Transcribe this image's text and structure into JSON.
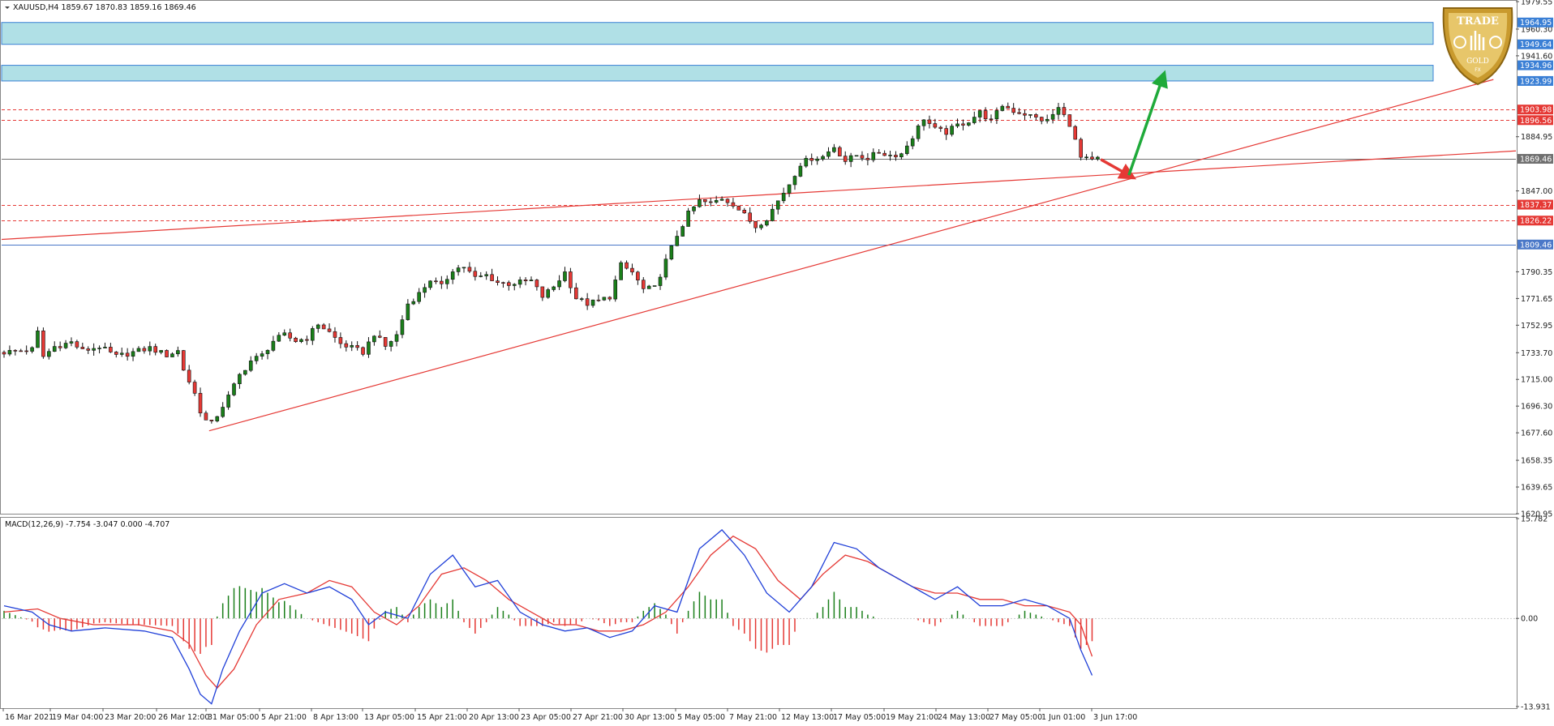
{
  "header": {
    "symbol_line": "XAUUSD,H4  1859.67 1870.83 1859.16 1869.46"
  },
  "macd_header": "MACD(12,26,9) -7.754 -3.047 0.000 -4.707",
  "colors": {
    "bull": "#1a7f1a",
    "bear": "#e53935",
    "zone_fill": "#b0e0e6",
    "zone_border": "#3a7fd5",
    "red_line": "#e53935",
    "blue_line": "#4a78c8",
    "grey_badge": "#707070",
    "green_arrow": "#1faa3a"
  },
  "chart_data": [
    {
      "type": "candlestick",
      "name": "XAUUSD,H4",
      "ylim": [
        1620.95,
        1979.55
      ],
      "price_axis_ticks": [
        "1979.55",
        "1960.30",
        "1941.60",
        "1884.95",
        "1847.00",
        "1790.35",
        "1771.65",
        "1752.95",
        "1733.70",
        "1715.00",
        "1696.30",
        "1677.60",
        "1658.35",
        "1639.65",
        "1620.95"
      ],
      "x_tick_labels": [
        "16 Mar 2021",
        "19 Mar 04:00",
        "23 Mar 20:00",
        "26 Mar 12:00",
        "31 Mar 05:00",
        "5 Apr 21:00",
        "8 Apr 13:00",
        "13 Apr 05:00",
        "15 Apr 21:00",
        "20 Apr 13:00",
        "23 Apr 05:00",
        "27 Apr 21:00",
        "30 Apr 13:00",
        "5 May 05:00",
        "7 May 21:00",
        "12 May 13:00",
        "17 May 05:00",
        "19 May 21:00",
        "24 May 13:00",
        "27 May 05:00",
        "1 Jun 01:00",
        "3 Jun 17:00"
      ],
      "price_path": [
        [
          0,
          1734
        ],
        [
          5,
          1736
        ],
        [
          6,
          1748
        ],
        [
          7,
          1731
        ],
        [
          9,
          1738
        ],
        [
          12,
          1741
        ],
        [
          14,
          1735
        ],
        [
          17,
          1738
        ],
        [
          20,
          1731
        ],
        [
          24,
          1735
        ],
        [
          26,
          1737
        ],
        [
          29,
          1732
        ],
        [
          31,
          1735
        ],
        [
          32,
          1722
        ],
        [
          34,
          1705
        ],
        [
          35,
          1693
        ],
        [
          36,
          1686
        ],
        [
          37,
          1684
        ],
        [
          38,
          1690
        ],
        [
          40,
          1703
        ],
        [
          42,
          1718
        ],
        [
          44,
          1728
        ],
        [
          46,
          1732
        ],
        [
          48,
          1742
        ],
        [
          50,
          1746
        ],
        [
          52,
          1742
        ],
        [
          54,
          1744
        ],
        [
          56,
          1754
        ],
        [
          58,
          1748
        ],
        [
          60,
          1740
        ],
        [
          62,
          1737
        ],
        [
          64,
          1734
        ],
        [
          66,
          1747
        ],
        [
          68,
          1738
        ],
        [
          70,
          1746
        ],
        [
          72,
          1768
        ],
        [
          74,
          1775
        ],
        [
          76,
          1785
        ],
        [
          78,
          1780
        ],
        [
          80,
          1792
        ],
        [
          82,
          1794
        ],
        [
          84,
          1786
        ],
        [
          86,
          1788
        ],
        [
          88,
          1783
        ],
        [
          90,
          1782
        ],
        [
          92,
          1783
        ],
        [
          94,
          1784
        ],
        [
          96,
          1773
        ],
        [
          98,
          1780
        ],
        [
          100,
          1790
        ],
        [
          102,
          1772
        ],
        [
          104,
          1768
        ],
        [
          106,
          1770
        ],
        [
          108,
          1773
        ],
        [
          110,
          1795
        ],
        [
          112,
          1790
        ],
        [
          114,
          1778
        ],
        [
          116,
          1779
        ],
        [
          118,
          1798
        ],
        [
          120,
          1816
        ],
        [
          122,
          1831
        ],
        [
          124,
          1840
        ],
        [
          126,
          1838
        ],
        [
          128,
          1842
        ],
        [
          130,
          1838
        ],
        [
          132,
          1830
        ],
        [
          134,
          1822
        ],
        [
          136,
          1828
        ],
        [
          138,
          1840
        ],
        [
          140,
          1852
        ],
        [
          142,
          1866
        ],
        [
          144,
          1870
        ],
        [
          146,
          1871
        ],
        [
          148,
          1878
        ],
        [
          150,
          1868
        ],
        [
          152,
          1872
        ],
        [
          154,
          1870
        ],
        [
          156,
          1874
        ],
        [
          158,
          1872
        ],
        [
          160,
          1873
        ],
        [
          162,
          1885
        ],
        [
          164,
          1898
        ],
        [
          166,
          1890
        ],
        [
          168,
          1888
        ],
        [
          170,
          1893
        ],
        [
          172,
          1896
        ],
        [
          174,
          1902
        ],
        [
          176,
          1896
        ],
        [
          178,
          1907
        ],
        [
          180,
          1903
        ],
        [
          182,
          1901
        ],
        [
          184,
          1898
        ],
        [
          186,
          1896
        ],
        [
          188,
          1905
        ],
        [
          190,
          1894
        ],
        [
          192,
          1870
        ],
        [
          194,
          1868
        ],
        [
          195,
          1869.46
        ]
      ],
      "horizontal_levels": [
        {
          "label": "1903.98",
          "value": 1903.98,
          "color": "#e53935",
          "style": "dashed"
        },
        {
          "label": "1896.56",
          "value": 1896.56,
          "color": "#e53935",
          "style": "dashed"
        },
        {
          "label": "1869.46",
          "value": 1869.46,
          "color": "#707070",
          "style": "solid"
        },
        {
          "label": "1837.37",
          "value": 1837.37,
          "color": "#e53935",
          "style": "dashed"
        },
        {
          "label": "1826.22",
          "value": 1826.22,
          "color": "#e53935",
          "style": "dashed"
        },
        {
          "label": "1809.46",
          "value": 1809.46,
          "color": "#4a78c8",
          "style": "solid"
        }
      ],
      "zones": [
        {
          "top": 1964.95,
          "bottom": 1949.64,
          "top_label": "1964.95",
          "bottom_label": "1949.64"
        },
        {
          "top": 1934.96,
          "bottom": 1923.99,
          "top_label": "1934.96",
          "bottom_label": "1923.99"
        }
      ],
      "trendlines": [
        {
          "name": "rising-support",
          "from": [
            37,
            1679
          ],
          "to": [
            266,
            1925
          ]
        },
        {
          "name": "shallow-line",
          "from": [
            0,
            1813
          ],
          "to": [
            270,
            1875
          ]
        }
      ],
      "arrows": [
        {
          "name": "red-dip",
          "from": [
            196,
            1869
          ],
          "to": [
            201,
            1858
          ],
          "color": "#e53935"
        },
        {
          "name": "green-rally",
          "from": [
            201,
            1858
          ],
          "to": [
            207,
            1926
          ],
          "color": "#1faa3a"
        }
      ]
    },
    {
      "type": "histogram+line",
      "name": "MACD(12,26,9)",
      "ylim": [
        -13.931,
        15.782
      ],
      "axis_ticks": [
        "15.782",
        "0.00",
        "-13.931"
      ],
      "macd_path": [
        [
          0,
          2
        ],
        [
          5,
          1
        ],
        [
          8,
          -1
        ],
        [
          12,
          -2
        ],
        [
          18,
          -1.5
        ],
        [
          25,
          -2
        ],
        [
          30,
          -3
        ],
        [
          33,
          -8
        ],
        [
          35,
          -12
        ],
        [
          37,
          -13.5
        ],
        [
          39,
          -8
        ],
        [
          42,
          -2
        ],
        [
          46,
          4
        ],
        [
          50,
          5.5
        ],
        [
          54,
          4
        ],
        [
          58,
          5
        ],
        [
          62,
          3
        ],
        [
          65,
          -1
        ],
        [
          68,
          1
        ],
        [
          72,
          0
        ],
        [
          76,
          7
        ],
        [
          80,
          10
        ],
        [
          84,
          5
        ],
        [
          88,
          6
        ],
        [
          92,
          1
        ],
        [
          96,
          -1
        ],
        [
          100,
          -2
        ],
        [
          104,
          -1.5
        ],
        [
          108,
          -3
        ],
        [
          112,
          -2
        ],
        [
          116,
          2
        ],
        [
          120,
          1
        ],
        [
          124,
          11
        ],
        [
          128,
          14
        ],
        [
          132,
          10
        ],
        [
          136,
          4
        ],
        [
          140,
          1
        ],
        [
          144,
          5
        ],
        [
          148,
          12
        ],
        [
          152,
          11
        ],
        [
          156,
          8
        ],
        [
          160,
          6
        ],
        [
          164,
          4
        ],
        [
          166,
          3
        ],
        [
          170,
          5
        ],
        [
          174,
          2
        ],
        [
          178,
          2
        ],
        [
          182,
          3
        ],
        [
          186,
          2
        ],
        [
          190,
          0
        ],
        [
          192,
          -5
        ],
        [
          194,
          -9
        ]
      ],
      "signal_path": [
        [
          0,
          1
        ],
        [
          6,
          1.5
        ],
        [
          10,
          0
        ],
        [
          16,
          -1
        ],
        [
          24,
          -1
        ],
        [
          30,
          -2
        ],
        [
          33,
          -4
        ],
        [
          36,
          -9
        ],
        [
          38,
          -11
        ],
        [
          41,
          -8
        ],
        [
          45,
          -1
        ],
        [
          49,
          3
        ],
        [
          54,
          4
        ],
        [
          58,
          6
        ],
        [
          62,
          5
        ],
        [
          66,
          1
        ],
        [
          70,
          -1
        ],
        [
          74,
          2
        ],
        [
          78,
          7
        ],
        [
          82,
          8
        ],
        [
          86,
          6
        ],
        [
          90,
          3
        ],
        [
          94,
          1
        ],
        [
          98,
          -1
        ],
        [
          102,
          -1
        ],
        [
          106,
          -2
        ],
        [
          110,
          -2
        ],
        [
          114,
          -1
        ],
        [
          118,
          1
        ],
        [
          122,
          5
        ],
        [
          126,
          10
        ],
        [
          130,
          13
        ],
        [
          134,
          11
        ],
        [
          138,
          6
        ],
        [
          142,
          3
        ],
        [
          146,
          7
        ],
        [
          150,
          10
        ],
        [
          154,
          9
        ],
        [
          158,
          7
        ],
        [
          162,
          5
        ],
        [
          166,
          4
        ],
        [
          170,
          4
        ],
        [
          174,
          3
        ],
        [
          178,
          3
        ],
        [
          182,
          2
        ],
        [
          186,
          2
        ],
        [
          190,
          1
        ],
        [
          192,
          -1
        ],
        [
          194,
          -6
        ]
      ]
    }
  ],
  "logo": {
    "text_top": "TRADE",
    "text_bottom": "GOLD",
    "text_tiny": "FX"
  }
}
